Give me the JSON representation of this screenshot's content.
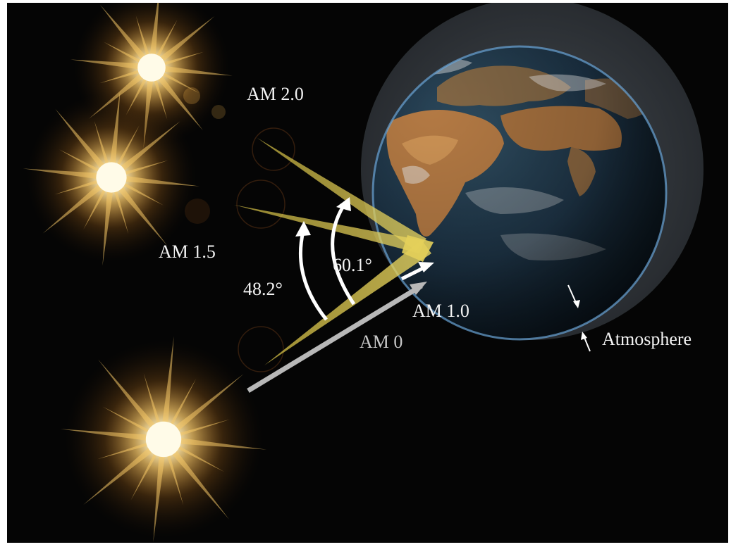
{
  "labels": {
    "am_2_0": "AM 2.0",
    "am_1_5": "AM 1.5",
    "am_1_0": "AM 1.0",
    "am_0": "AM 0",
    "angle_48": "48.2°",
    "angle_60": "60.1°",
    "atmosphere": "Atmosphere"
  },
  "colors": {
    "background": "#050505",
    "sun_glow": "#f2b34a",
    "sun_core": "#fffbe8",
    "ray_yellow": "#d9c24a",
    "ray_am0": "#b8b8b8",
    "ocean": "#1d3345",
    "land": "#b47a44",
    "atmosphere": "#3a4046"
  },
  "icons": [
    "sun-icon",
    "earth-icon",
    "arrow-icon"
  ]
}
